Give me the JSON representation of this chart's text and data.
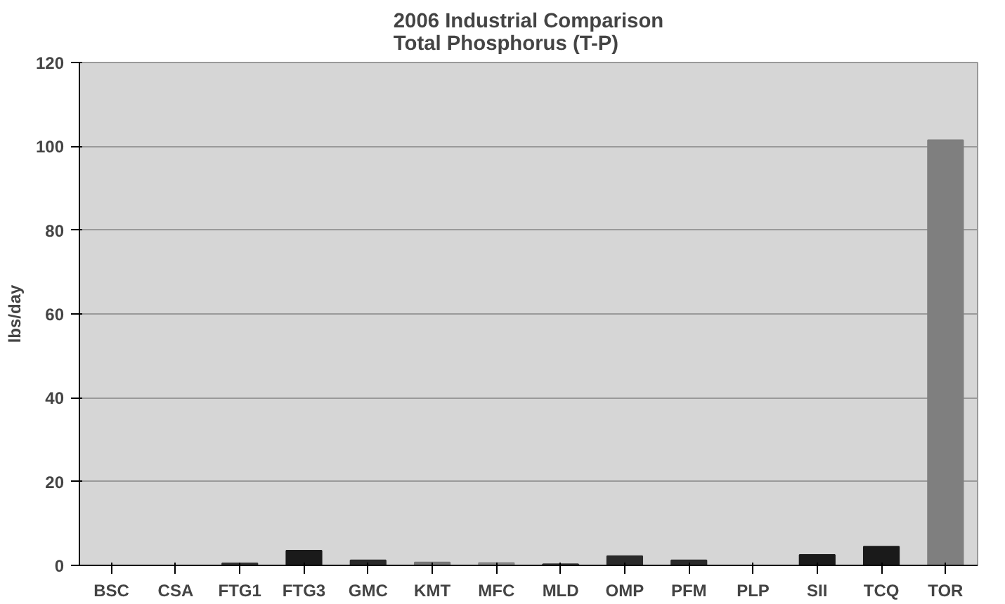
{
  "chart_data": {
    "type": "bar",
    "title": "2006 Industrial Comparison\nTotal Phosphorus (T-P)",
    "ylabel": "lbs/day",
    "categories": [
      "BSC",
      "CSA",
      "FTG1",
      "FTG3",
      "GMC",
      "KMT",
      "MFC",
      "MLD",
      "OMP",
      "PFM",
      "PLP",
      "SII",
      "TCQ",
      "TOR"
    ],
    "values": [
      0,
      0,
      0.5,
      3.5,
      1.2,
      0.7,
      0.6,
      0.3,
      2.2,
      1.2,
      0,
      2.5,
      4.5,
      101.5
    ],
    "colors": [
      "#222222",
      "#222222",
      "#333333",
      "#1a1a1a",
      "#2a2a2a",
      "#777777",
      "#888888",
      "#333333",
      "#2a2a2a",
      "#2a2a2a",
      "#222222",
      "#1a1a1a",
      "#1a1a1a",
      "#7f7f7f"
    ],
    "ylim": [
      0,
      120
    ],
    "yticks": [
      0,
      20,
      40,
      60,
      80,
      100,
      120
    ],
    "grid": "y"
  }
}
